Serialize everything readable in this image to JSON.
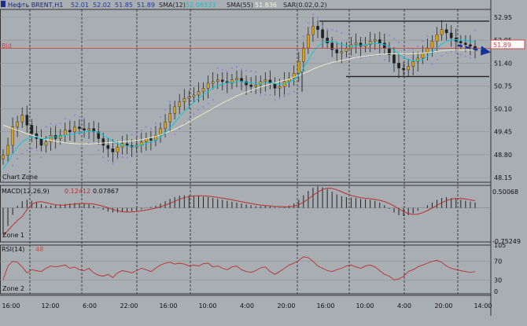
{
  "header": {
    "symbol": "Нефть BRENT,H1",
    "ohlc": [
      "52.01",
      "52.02",
      "51.85",
      "51.89"
    ],
    "sma12_label": "SMA(12)",
    "sma12_value": "52.08333",
    "sma55_label": "SMA(55)",
    "sma55_value": "51.836",
    "sar_label": "SAR(0.02,0.2)"
  },
  "bid_label": "Bid",
  "bid_value": "51.89",
  "zones": {
    "chart": "Chart Zone",
    "zone1": "Zone 1",
    "zone2": "Zone 2"
  },
  "macd": {
    "label": "MACD(12,26,9)",
    "value1": "0.12412",
    "value2": "0.07867",
    "max_label": "0.50068",
    "min_label": "-0.75249"
  },
  "rsi": {
    "label": "RSI(14)",
    "value": "48"
  },
  "colors": {
    "bg": "#a9aeb3",
    "up": "#d9a21a",
    "down": "#222222",
    "sma12": "#12c6d6",
    "sma55": "#ece9c6",
    "sar": "#9b7de0",
    "bid": "#c84848",
    "macd_signal": "#b83030",
    "arrow": "#1432a0"
  },
  "chart_data": [
    {
      "type": "candlestick",
      "y_ticks": [
        "52.95",
        "52.05",
        "51.40",
        "50.75",
        "50.10",
        "49.45",
        "48.80",
        "48.15"
      ],
      "ylim": [
        47.9,
        53.05
      ],
      "x_ticks": [
        "16:00",
        "12:00",
        "6:00",
        "22:00",
        "16:00",
        "10:00",
        "4:00",
        "20:00",
        "16:00",
        "10:00",
        "4:00",
        "20:00",
        "14:00"
      ],
      "bid": 51.89,
      "channel_upper": 52.7,
      "channel_lower": 51.05,
      "close": [
        48.7,
        49.0,
        49.55,
        49.7,
        49.9,
        49.6,
        49.35,
        49.2,
        49.0,
        49.1,
        49.3,
        49.2,
        49.3,
        49.45,
        49.4,
        49.55,
        49.5,
        49.45,
        49.5,
        49.4,
        49.2,
        49.0,
        48.9,
        48.8,
        48.95,
        49.05,
        49.0,
        48.95,
        49.0,
        49.1,
        49.2,
        49.15,
        49.3,
        49.5,
        49.7,
        49.95,
        50.15,
        50.3,
        50.4,
        50.45,
        50.5,
        50.6,
        50.7,
        50.85,
        50.9,
        50.95,
        50.9,
        50.85,
        50.95,
        51.0,
        50.9,
        50.8,
        50.75,
        50.8,
        50.9,
        50.95,
        50.85,
        50.7,
        50.75,
        50.9,
        51.0,
        51.15,
        51.5,
        51.9,
        52.3,
        52.55,
        52.45,
        52.2,
        52.05,
        51.85,
        51.75,
        51.8,
        51.9,
        52.0,
        52.05,
        51.95,
        52.0,
        52.1,
        52.15,
        52.05,
        51.9,
        51.7,
        51.45,
        51.3,
        51.25,
        51.35,
        51.5,
        51.6,
        51.75,
        51.9,
        52.1,
        52.3,
        52.45,
        52.35,
        52.2,
        52.1,
        52.05,
        52.0,
        51.95,
        51.89
      ],
      "sma12": [
        48.3,
        48.5,
        48.75,
        48.95,
        49.1,
        49.2,
        49.25,
        49.25,
        49.2,
        49.2,
        49.25,
        49.25,
        49.28,
        49.3,
        49.32,
        49.35,
        49.38,
        49.4,
        49.42,
        49.42,
        49.38,
        49.3,
        49.22,
        49.12,
        49.05,
        49.0,
        48.98,
        48.97,
        48.98,
        49.0,
        49.05,
        49.1,
        49.15,
        49.25,
        49.38,
        49.52,
        49.68,
        49.85,
        50.0,
        50.15,
        50.28,
        50.4,
        50.5,
        50.6,
        50.7,
        50.78,
        50.83,
        50.86,
        50.88,
        50.9,
        50.9,
        50.88,
        50.86,
        50.84,
        50.84,
        50.86,
        50.86,
        50.84,
        50.82,
        50.84,
        50.88,
        50.95,
        51.1,
        51.3,
        51.55,
        51.78,
        51.95,
        52.05,
        52.1,
        52.1,
        52.05,
        52.0,
        51.97,
        51.96,
        51.97,
        51.98,
        52.0,
        52.02,
        52.04,
        52.03,
        52.0,
        51.93,
        51.83,
        51.72,
        51.62,
        51.55,
        51.52,
        51.52,
        51.56,
        51.65,
        51.77,
        51.9,
        52.02,
        52.1,
        52.14,
        52.15,
        52.14,
        52.12,
        52.1,
        52.08
      ],
      "sma55": [
        49.6,
        49.55,
        49.5,
        49.45,
        49.4,
        49.35,
        49.3,
        49.26,
        49.22,
        49.18,
        49.15,
        49.12,
        49.1,
        49.08,
        49.06,
        49.05,
        49.04,
        49.04,
        49.04,
        49.05,
        49.06,
        49.07,
        49.08,
        49.09,
        49.1,
        49.11,
        49.12,
        49.13,
        49.15,
        49.17,
        49.2,
        49.23,
        49.27,
        49.31,
        49.36,
        49.42,
        49.48,
        49.55,
        49.62,
        49.7,
        49.78,
        49.86,
        49.94,
        50.02,
        50.1,
        50.18,
        50.26,
        50.33,
        50.4,
        50.47,
        50.53,
        50.59,
        50.64,
        50.69,
        50.74,
        50.78,
        50.82,
        50.86,
        50.9,
        50.94,
        50.98,
        51.03,
        51.08,
        51.14,
        51.2,
        51.27,
        51.33,
        51.38,
        51.43,
        51.47,
        51.5,
        51.53,
        51.56,
        51.59,
        51.62,
        51.64,
        51.66,
        51.68,
        51.7,
        51.71,
        51.72,
        51.73,
        51.73,
        51.73,
        51.73,
        51.73,
        51.73,
        51.74,
        51.75,
        51.76,
        51.78,
        51.8,
        51.82,
        51.83,
        51.84,
        51.84,
        51.84,
        51.84,
        51.84,
        51.84
      ],
      "macd": [
        -0.6,
        -0.4,
        -0.15,
        0.05,
        0.15,
        0.18,
        0.16,
        0.12,
        0.08,
        0.05,
        0.05,
        0.06,
        0.08,
        0.09,
        0.1,
        0.11,
        0.1,
        0.09,
        0.08,
        0.05,
        0.01,
        -0.04,
        -0.08,
        -0.1,
        -0.1,
        -0.09,
        -0.08,
        -0.07,
        -0.05,
        -0.03,
        0.0,
        0.02,
        0.05,
        0.1,
        0.15,
        0.2,
        0.24,
        0.27,
        0.28,
        0.28,
        0.27,
        0.26,
        0.25,
        0.24,
        0.22,
        0.2,
        0.18,
        0.16,
        0.14,
        0.12,
        0.1,
        0.08,
        0.06,
        0.04,
        0.04,
        0.05,
        0.04,
        0.02,
        0.01,
        0.02,
        0.05,
        0.1,
        0.18,
        0.28,
        0.38,
        0.45,
        0.48,
        0.46,
        0.42,
        0.36,
        0.3,
        0.26,
        0.24,
        0.23,
        0.22,
        0.2,
        0.19,
        0.18,
        0.16,
        0.12,
        0.06,
        -0.02,
        -0.1,
        -0.16,
        -0.18,
        -0.16,
        -0.12,
        -0.06,
        0.0,
        0.06,
        0.12,
        0.18,
        0.22,
        0.24,
        0.22,
        0.2,
        0.18,
        0.16,
        0.14,
        0.12
      ],
      "macd_ylim": [
        -0.75249,
        0.50068
      ],
      "rsi": [
        30,
        60,
        70,
        68,
        58,
        45,
        52,
        50,
        48,
        55,
        60,
        58,
        60,
        62,
        55,
        58,
        52,
        50,
        55,
        45,
        40,
        38,
        42,
        35,
        45,
        50,
        48,
        45,
        50,
        55,
        52,
        48,
        55,
        62,
        66,
        68,
        64,
        66,
        64,
        60,
        62,
        60,
        65,
        66,
        58,
        60,
        55,
        52,
        58,
        60,
        52,
        48,
        46,
        50,
        56,
        58,
        48,
        42,
        48,
        55,
        62,
        66,
        72,
        80,
        78,
        70,
        60,
        55,
        50,
        48,
        52,
        55,
        60,
        62,
        58,
        55,
        60,
        62,
        58,
        50,
        42,
        38,
        30,
        32,
        38,
        48,
        52,
        58,
        62,
        66,
        70,
        72,
        68,
        60,
        55,
        52,
        50,
        48,
        46,
        48
      ],
      "rsi_ylim": [
        0,
        105
      ],
      "rsi_ticks": [
        "105",
        "70",
        "30",
        "0"
      ]
    }
  ]
}
